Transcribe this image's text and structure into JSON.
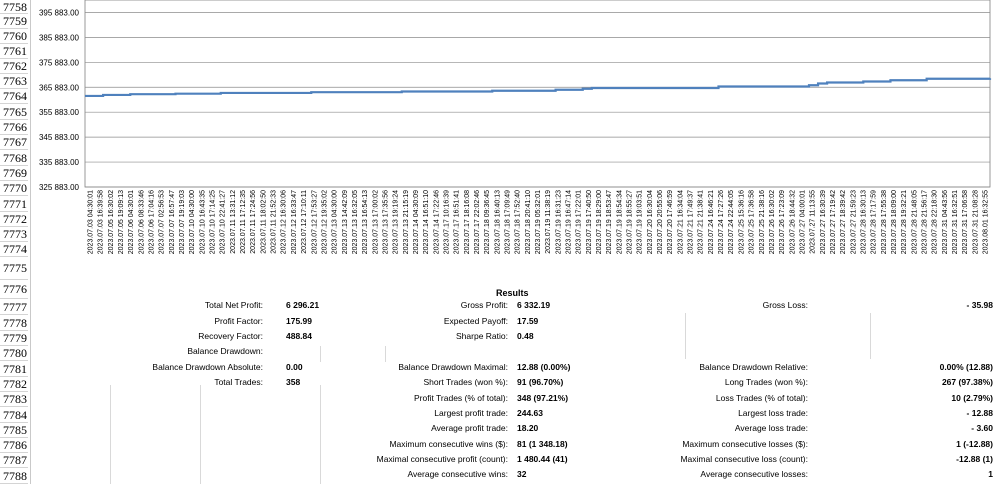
{
  "row_numbers": [
    "7758",
    "7759",
    "7760",
    "7761",
    "7762",
    "7763",
    "7764",
    "7765",
    "7766",
    "7767",
    "7768",
    "7769",
    "7770",
    "7771",
    "7772",
    "7773",
    "7774",
    "7775",
    "7776",
    "7777",
    "7778",
    "7779",
    "7780",
    "7781",
    "7782",
    "7783",
    "7784",
    "7785",
    "7786",
    "7787",
    "7788"
  ],
  "chart_data": {
    "type": "line",
    "y_tick_labels": [
      "395 883.00",
      "385 883.00",
      "375 883.00",
      "365 883.00",
      "355 883.00",
      "345 883.00",
      "335 883.00",
      "325 883.00"
    ],
    "ylim": [
      325883,
      400883
    ],
    "x_tick_labels": [
      "2023.07.03 04:30:01",
      "2023.07.03 16:39:58",
      "2023.07.05 16:30:02",
      "2023.07.05 19:09:13",
      "2023.07.06 04:30:01",
      "2023.07.06 08:33:46",
      "2023.07.06 17:04:16",
      "2023.07.07 02:56:53",
      "2023.07.07 16:57:47",
      "2023.07.07 19:19:03",
      "2023.07.10 04:30:00",
      "2023.07.10 16:43:35",
      "2023.07.10 17:14:25",
      "2023.07.10 22:41:27",
      "2023.07.11 13:31:12",
      "2023.07.11 17:12:35",
      "2023.07.11 17:24:56",
      "2023.07.11 18:02:50",
      "2023.07.11 21:52:33",
      "2023.07.12 16:30:06",
      "2023.07.12 16:33:47",
      "2023.07.12 17:10:11",
      "2023.07.12 17:53:27",
      "2023.07.12 19:35:02",
      "2023.07.13 04:30:00",
      "2023.07.13 14:42:09",
      "2023.07.13 16:32:05",
      "2023.07.13 16:54:13",
      "2023.07.13 17:00:02",
      "2023.07.13 17:35:56",
      "2023.07.13 19:19:24",
      "2023.07.13 21:15:19",
      "2023.07.14 04:30:09",
      "2023.07.14 16:51:10",
      "2023.07.14 17:22:46",
      "2023.07.17 10:16:39",
      "2023.07.17 16:51:41",
      "2023.07.17 18:16:08",
      "2023.07.17 22:02:46",
      "2023.07.18 09:36:45",
      "2023.07.18 16:40:13",
      "2023.07.18 17:09:49",
      "2023.07.18 17:52:40",
      "2023.07.18 20:41:10",
      "2023.07.19 05:32:01",
      "2023.07.19 11:38:19",
      "2023.07.19 16:31:23",
      "2023.07.19 16:47:14",
      "2023.07.19 17:22:01",
      "2023.07.19 17:40:50",
      "2023.07.19 18:29:00",
      "2023.07.19 18:53:47",
      "2023.07.19 18:54:34",
      "2023.07.19 18:55:27",
      "2023.07.19 19:03:51",
      "2023.07.20 16:30:04",
      "2023.07.20 20:55:06",
      "2023.07.20 17:46:59",
      "2023.07.21 16:34:04",
      "2023.07.21 17:49:37",
      "2023.07.21 21:38:41",
      "2023.07.24 16:46:21",
      "2023.07.24 17:27:26",
      "2023.07.24 22:44:05",
      "2023.07.25 15:36:16",
      "2023.07.25 17:36:58",
      "2023.07.25 21:38:16",
      "2023.07.26 16:30:02",
      "2023.07.26 17:23:09",
      "2023.07.26 18:44:32",
      "2023.07.27 04:00:01",
      "2023.07.27 11:13:55",
      "2023.07.27 16:30:39",
      "2023.07.27 17:19:42",
      "2023.07.27 18:39:42",
      "2023.07.27 21:59:23",
      "2023.07.28 16:30:13",
      "2023.07.28 17:17:59",
      "2023.07.28 17:55:38",
      "2023.07.28 18:09:00",
      "2023.07.28 19:32:21",
      "2023.07.28 21:48:05",
      "2023.07.28 21:56:17",
      "2023.07.28 22:18:30",
      "2023.07.31 04:43:56",
      "2023.07.31 16:32:51",
      "2023.07.31 17:06:58",
      "2023.07.31 21:08:28",
      "2023.08.01 16:32:55"
    ],
    "series_color": "#4f81bd",
    "points": [
      [
        0,
        362400
      ],
      [
        2,
        362800
      ],
      [
        5,
        363100
      ],
      [
        10,
        363300
      ],
      [
        15,
        363600
      ],
      [
        25,
        363900
      ],
      [
        35,
        364200
      ],
      [
        45,
        364500
      ],
      [
        52,
        364900
      ],
      [
        55,
        365300
      ],
      [
        56,
        365600
      ],
      [
        70,
        366200
      ],
      [
        75,
        366200
      ],
      [
        80,
        366700
      ],
      [
        81,
        367400
      ],
      [
        82,
        367800
      ],
      [
        86,
        368200
      ],
      [
        89,
        368700
      ],
      [
        93,
        369300
      ],
      [
        100,
        369500
      ]
    ],
    "grid": true
  },
  "results": {
    "title": "Results",
    "rows": [
      {
        "l1": "Total Net Profit:",
        "v1": "6 296.21",
        "l2": "Gross Profit:",
        "v2": "6 332.19",
        "l3": "Gross Loss:",
        "v3": "- 35.98"
      },
      {
        "l1": "Profit Factor:",
        "v1": "175.99",
        "l2": "Expected Payoff:",
        "v2": "17.59",
        "l3": "",
        "v3": ""
      },
      {
        "l1": "Recovery Factor:",
        "v1": "488.84",
        "l2": "Sharpe Ratio:",
        "v2": "0.48",
        "l3": "",
        "v3": ""
      },
      {
        "l1": "Balance Drawdown:",
        "v1": "",
        "l2": "",
        "v2": "",
        "l3": "",
        "v3": ""
      },
      {
        "l1": "Balance Drawdown Absolute:",
        "v1": "0.00",
        "l2": "Balance Drawdown Maximal:",
        "v2": "12.88 (0.00%)",
        "l3": "Balance Drawdown Relative:",
        "v3": "0.00% (12.88)"
      },
      {
        "l1": "Total Trades:",
        "v1": "358",
        "l2": "Short Trades (won %):",
        "v2": "91 (96.70%)",
        "l3": "Long Trades (won %):",
        "v3": "267 (97.38%)"
      },
      {
        "l1": "",
        "v1": "",
        "l2": "Profit Trades (% of total):",
        "v2": "348 (97.21%)",
        "l3": "Loss Trades (% of total):",
        "v3": "10 (2.79%)"
      },
      {
        "l1": "",
        "v1": "",
        "l2": "Largest profit trade:",
        "v2": "244.63",
        "l3": "Largest loss trade:",
        "v3": "- 12.88"
      },
      {
        "l1": "",
        "v1": "",
        "l2": "Average profit trade:",
        "v2": "18.20",
        "l3": "Average loss trade:",
        "v3": "- 3.60"
      },
      {
        "l1": "",
        "v1": "",
        "l2": "Maximum consecutive wins ($):",
        "v2": "81 (1 348.18)",
        "l3": "Maximum consecutive losses ($):",
        "v3": "1 (-12.88)"
      },
      {
        "l1": "",
        "v1": "",
        "l2": "Maximal consecutive profit (count):",
        "v2": "1 480.44 (41)",
        "l3": "Maximal consecutive loss (count):",
        "v3": "-12.88 (1)"
      },
      {
        "l1": "",
        "v1": "",
        "l2": "Average consecutive wins:",
        "v2": "32",
        "l3": "Average consecutive losses:",
        "v3": "1"
      }
    ]
  }
}
